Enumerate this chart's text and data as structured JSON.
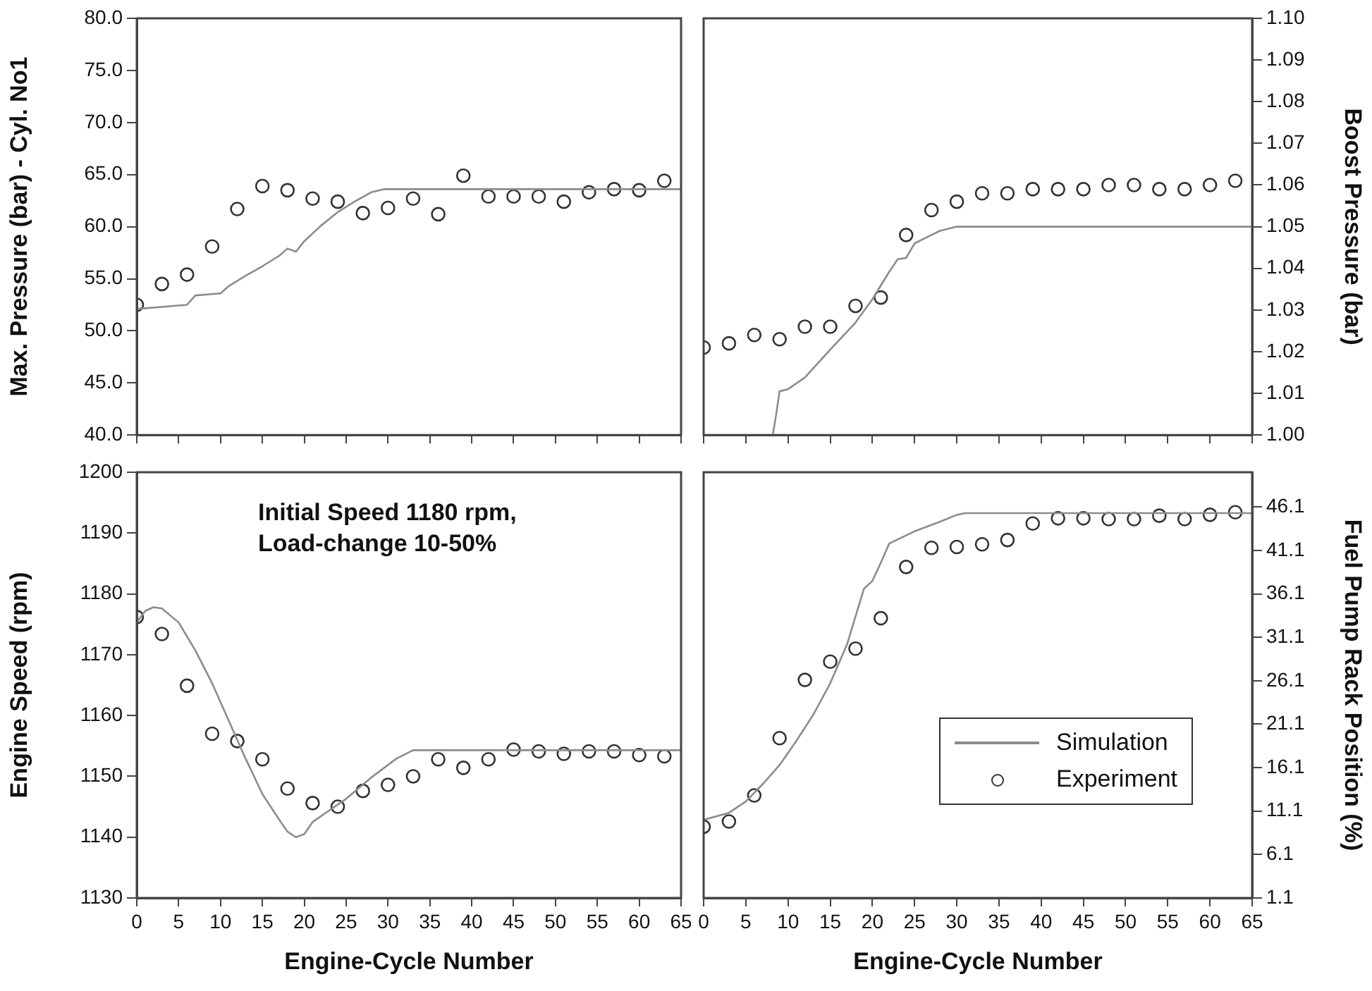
{
  "chart_data": [
    {
      "type": "scatter",
      "ylabel": "Max. Pressure (bar) - Cyl. No1",
      "xlim": [
        0,
        65
      ],
      "xticks": [
        0,
        5,
        10,
        15,
        20,
        25,
        30,
        35,
        40,
        45,
        50,
        55,
        60,
        65
      ],
      "ylim": [
        40,
        80
      ],
      "yticks": [
        {
          "value": 40,
          "label": "40.0"
        },
        {
          "value": 45,
          "label": "45.0"
        },
        {
          "value": 50,
          "label": "50.0"
        },
        {
          "value": 55,
          "label": "55.0"
        },
        {
          "value": 60,
          "label": "60.0"
        },
        {
          "value": 65,
          "label": "65.0"
        },
        {
          "value": 70,
          "label": "70.0"
        },
        {
          "value": 75,
          "label": "75.0"
        },
        {
          "value": 80,
          "label": "80.0"
        }
      ],
      "tick_labels": "y",
      "grid": false,
      "legend": false,
      "series": [
        {
          "type": "line",
          "marker": "none",
          "color": "#8c8c8c",
          "x": [
            0,
            6,
            7,
            10,
            11,
            13,
            15,
            17,
            18,
            19,
            20,
            22,
            24,
            26,
            28,
            29.5,
            65
          ],
          "values": [
            52.1,
            52.5,
            53.4,
            53.6,
            54.3,
            55.3,
            56.2,
            57.2,
            57.9,
            57.6,
            58.6,
            60.1,
            61.4,
            62.4,
            63.3,
            63.6,
            63.6
          ]
        },
        {
          "type": "scatter",
          "marker": "circle",
          "color": "#333333",
          "x": [
            0,
            3,
            6,
            9,
            12,
            15,
            18,
            21,
            24,
            27,
            30,
            33,
            36,
            39,
            42,
            45,
            48,
            51,
            54,
            57,
            60,
            63
          ],
          "values": [
            52.5,
            54.5,
            55.4,
            58.1,
            61.7,
            63.9,
            63.5,
            62.7,
            62.4,
            61.3,
            61.8,
            62.7,
            61.2,
            64.9,
            62.9,
            62.9,
            62.9,
            62.4,
            63.3,
            63.6,
            63.5,
            64.4
          ]
        }
      ]
    },
    {
      "type": "scatter",
      "y2label": "Boost Pressure (bar)",
      "xlim": [
        0,
        65
      ],
      "xticks": [
        0,
        5,
        10,
        15,
        20,
        25,
        30,
        35,
        40,
        45,
        50,
        55,
        60,
        65
      ],
      "y2lim": [
        1.0,
        1.1
      ],
      "y2ticks": [
        {
          "value": 1.0,
          "label": "1.00"
        },
        {
          "value": 1.01,
          "label": "1.01"
        },
        {
          "value": 1.02,
          "label": "1.02"
        },
        {
          "value": 1.03,
          "label": "1.03"
        },
        {
          "value": 1.04,
          "label": "1.04"
        },
        {
          "value": 1.05,
          "label": "1.05"
        },
        {
          "value": 1.06,
          "label": "1.06"
        },
        {
          "value": 1.07,
          "label": "1.07"
        },
        {
          "value": 1.08,
          "label": "1.08"
        },
        {
          "value": 1.09,
          "label": "1.09"
        },
        {
          "value": 1.1,
          "label": "1.10"
        }
      ],
      "tick_labels": "y",
      "grid": false,
      "legend": false,
      "series": [
        {
          "type": "line",
          "marker": "none",
          "axis": "y2",
          "color": "#8c8c8c",
          "x": [
            0,
            8.2,
            8.6,
            9,
            10,
            12,
            15,
            18,
            20,
            22,
            23,
            24,
            25,
            27,
            28,
            30,
            65
          ],
          "values": [
            1.0,
            1.0,
            1.005,
            1.0105,
            1.011,
            1.0138,
            1.0205,
            1.027,
            1.0326,
            1.0392,
            1.0422,
            1.0425,
            1.046,
            1.048,
            1.049,
            1.05,
            1.05
          ]
        },
        {
          "type": "scatter",
          "marker": "circle",
          "axis": "y2",
          "color": "#333333",
          "x": [
            0,
            3,
            6,
            9,
            12,
            15,
            18,
            21,
            24,
            27,
            30,
            33,
            36,
            39,
            42,
            45,
            48,
            51,
            54,
            57,
            60,
            63
          ],
          "values": [
            1.021,
            1.022,
            1.024,
            1.023,
            1.026,
            1.026,
            1.031,
            1.033,
            1.048,
            1.054,
            1.056,
            1.058,
            1.058,
            1.059,
            1.059,
            1.059,
            1.06,
            1.06,
            1.059,
            1.059,
            1.06,
            1.061
          ]
        }
      ]
    },
    {
      "type": "scatter",
      "xlabel": "Engine-Cycle Number",
      "ylabel": "Engine Speed (rpm)",
      "annotations": [
        "Initial Speed 1180 rpm,\nLoad-change 10-50%"
      ],
      "xlim": [
        0,
        65
      ],
      "xticks": [
        0,
        5,
        10,
        15,
        20,
        25,
        30,
        35,
        40,
        45,
        50,
        55,
        60,
        65
      ],
      "ylim": [
        1130,
        1200
      ],
      "yticks": [
        1130,
        1140,
        1150,
        1160,
        1170,
        1180,
        1190,
        1200
      ],
      "grid": false,
      "legend": false,
      "series": [
        {
          "type": "line",
          "marker": "none",
          "color": "#8c8c8c",
          "x": [
            0,
            1,
            2,
            3,
            5,
            7,
            9,
            11,
            13,
            15,
            17,
            18,
            19,
            20,
            21,
            23,
            25,
            28,
            31,
            33,
            65
          ],
          "values": [
            1175.3,
            1177.2,
            1177.8,
            1177.6,
            1175.3,
            1170.7,
            1165.3,
            1159.1,
            1152.9,
            1147.1,
            1142.9,
            1140.9,
            1140.0,
            1140.5,
            1142.5,
            1144.4,
            1146.3,
            1149.8,
            1152.9,
            1154.3,
            1154.3
          ]
        },
        {
          "type": "scatter",
          "marker": "circle",
          "color": "#333333",
          "x": [
            0,
            3,
            6,
            9,
            12,
            15,
            18,
            21,
            24,
            27,
            30,
            33,
            36,
            39,
            42,
            45,
            48,
            51,
            54,
            57,
            60,
            63
          ],
          "values": [
            1176.2,
            1173.4,
            1164.9,
            1157.0,
            1155.8,
            1152.8,
            1148.0,
            1145.6,
            1145.0,
            1147.6,
            1148.6,
            1150.0,
            1152.8,
            1151.4,
            1152.8,
            1154.4,
            1154.1,
            1153.7,
            1154.1,
            1154.1,
            1153.5,
            1153.3
          ]
        }
      ]
    },
    {
      "type": "scatter",
      "xlabel": "Engine-Cycle Number",
      "y2label": "Fuel Pump Rack Position (%)",
      "xlim": [
        0,
        65
      ],
      "xticks": [
        0,
        5,
        10,
        15,
        20,
        25,
        30,
        35,
        40,
        45,
        50,
        55,
        60,
        65
      ],
      "y2lim": [
        1.1,
        50.1
      ],
      "y2ticks": [
        1.1,
        6.1,
        11.1,
        16.1,
        21.1,
        26.1,
        31.1,
        36.1,
        41.1,
        46.1
      ],
      "grid": false,
      "legend": "bottom right",
      "series": [
        {
          "name": "Simulation",
          "type": "line",
          "marker": "none",
          "axis": "y2",
          "color": "#8c8c8c",
          "x": [
            0,
            3,
            5,
            7,
            9,
            11,
            13,
            15,
            17,
            19,
            20,
            21,
            22,
            25,
            28,
            30,
            31,
            65
          ],
          "values": [
            10.1,
            10.9,
            12.2,
            14.2,
            16.4,
            19.2,
            22.2,
            25.8,
            30.3,
            36.7,
            37.6,
            39.7,
            41.9,
            43.3,
            44.4,
            45.2,
            45.4,
            45.4
          ]
        },
        {
          "name": "Experiment",
          "type": "scatter",
          "marker": "circle",
          "axis": "y2",
          "color": "#333333",
          "x": [
            0,
            3,
            6,
            9,
            12,
            15,
            18,
            21,
            24,
            27,
            30,
            33,
            36,
            39,
            42,
            45,
            48,
            51,
            54,
            57,
            60,
            63
          ],
          "values": [
            9.3,
            9.9,
            12.9,
            19.5,
            26.2,
            28.3,
            29.8,
            33.3,
            39.2,
            41.4,
            41.5,
            41.8,
            42.3,
            44.2,
            44.8,
            44.8,
            44.7,
            44.7,
            45.1,
            44.7,
            45.2,
            45.5
          ]
        }
      ]
    }
  ]
}
